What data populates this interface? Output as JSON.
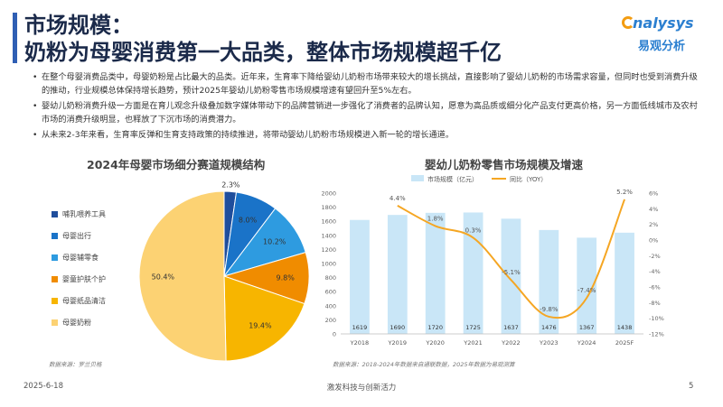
{
  "header": {
    "title_line1": "市场规模：",
    "title_line2": "奶粉为母婴消费第一大品类，整体市场规模超千亿",
    "logo_en": "nalysys",
    "logo_cn": "易观分析"
  },
  "bullets": [
    "在整个母婴消费品类中，母婴奶粉是占比最大的品类。近年来，生育率下降给婴幼儿奶粉市场带来较大的增长挑战，直接影响了婴幼儿奶粉的市场需求容量，但同时也受到消费升级的推动，行业规模总体保持增长趋势，预计2025年婴幼儿奶粉零售市场规模增速有望回升至5%左右。",
    "婴幼儿奶粉消费升级一方面是在育儿观念升级叠加数字媒体带动下的品牌营销进一步强化了消费者的品牌认知，愿意为高品质或细分化产品支付更高价格，另一方面低线城市及农村市场的消费升级明显，也释放了下沉市场的消费潜力。",
    "从未来2-3年来看，生育率反弹和生育支持政策的持续推进，将带动婴幼儿奶粉市场规模进入新一轮的增长通道。"
  ],
  "left_chart": {
    "title": "2024年母婴市场细分赛道规模结构",
    "source": "数据来源：罗兰贝格"
  },
  "right_chart": {
    "title": "婴幼儿奶粉零售市场规模及增速",
    "source": "数据来源：2018-2024年数据来自通联数据，2025年数据为易观测算"
  },
  "footer": {
    "date": "2025-6-18",
    "center": "激发科技与创新活力",
    "page": "5"
  },
  "chart_data": [
    {
      "type": "pie",
      "title": "2024年母婴市场细分赛道规模结构",
      "slices": [
        {
          "label": "哺乳喂养工具",
          "value": 2.3,
          "display": "2.3%",
          "color": "#1f4e9c"
        },
        {
          "label": "母婴出行",
          "value": 8.0,
          "display": "8.0%",
          "color": "#1a73c8"
        },
        {
          "label": "母婴辅零食",
          "value": 10.2,
          "display": "10.2%",
          "color": "#2e9be0"
        },
        {
          "label": "婴童护肤个护",
          "value": 9.8,
          "display": "9.8%",
          "color": "#f08c00"
        },
        {
          "label": "母婴纸品清洁",
          "value": 19.4,
          "display": "19.4%",
          "color": "#f7b500"
        },
        {
          "label": "母婴奶粉",
          "value": 50.4,
          "display": "50.4%",
          "color": "#fcd273"
        }
      ],
      "legend_placement": "left"
    },
    {
      "type": "bar+line",
      "title": "婴幼儿奶粉零售市场规模及增速",
      "categories": [
        "Y2018",
        "Y2019",
        "Y2020",
        "Y2021",
        "Y2022",
        "Y2023",
        "Y2024",
        "2025F"
      ],
      "series": [
        {
          "name": "市场规模（亿元）",
          "type": "bar",
          "axis": "left",
          "color": "#c9e6f7",
          "values": [
            1619,
            1690,
            1720,
            1725,
            1637,
            1476,
            1367,
            1438
          ]
        },
        {
          "name": "同比（YOY）",
          "type": "line",
          "axis": "right",
          "color": "#f5a623",
          "values": [
            null,
            4.4,
            1.8,
            0.3,
            -5.1,
            -9.8,
            -7.4,
            5.2
          ],
          "labels": [
            "",
            "4.4%",
            "1.8%",
            "0.3%",
            "-5.1%",
            "-9.8%",
            "-7.4%",
            "5.2%"
          ]
        }
      ],
      "left_axis": {
        "min": 0,
        "max": 2000,
        "ticks": [
          "0",
          "200",
          "400",
          "600",
          "800",
          "1000",
          "1200",
          "1400",
          "1600",
          "1800",
          "2000"
        ]
      },
      "right_axis": {
        "min": -12,
        "max": 6,
        "ticks": [
          "-12%",
          "-10%",
          "-8%",
          "-6%",
          "-4%",
          "-2%",
          "0%",
          "2%",
          "4%",
          "6%"
        ]
      },
      "grid": false,
      "legend_placement": "top"
    }
  ]
}
